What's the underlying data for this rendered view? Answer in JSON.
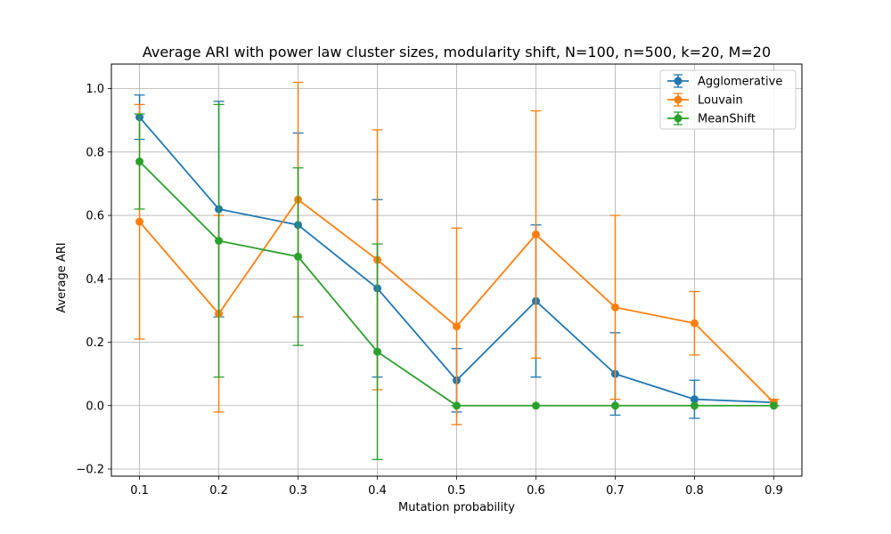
{
  "chart_data": {
    "type": "line",
    "title": "Average ARI with power law cluster sizes, modularity shift, N=100, n=500, k=20, M=20",
    "xlabel": "Mutation probability",
    "ylabel": "Average ARI",
    "x": [
      0.1,
      0.2,
      0.3,
      0.4,
      0.5,
      0.6,
      0.7,
      0.8,
      0.9
    ],
    "xticks": [
      "0.1",
      "0.2",
      "0.3",
      "0.4",
      "0.5",
      "0.6",
      "0.7",
      "0.8",
      "0.9"
    ],
    "yticks": [
      "−0.2",
      "0.0",
      "0.2",
      "0.4",
      "0.6",
      "0.8",
      "1.0"
    ],
    "ytick_values": [
      -0.2,
      0.0,
      0.2,
      0.4,
      0.6,
      0.8,
      1.0
    ],
    "xlim": [
      0.0645,
      0.9355
    ],
    "ylim": [
      -0.2225,
      1.0775
    ],
    "grid": true,
    "legend_position": "top-right",
    "error_bars": true,
    "series": [
      {
        "name": "Agglomerative",
        "color": "#1f77b4",
        "marker": "circle",
        "values": [
          0.91,
          0.62,
          0.57,
          0.37,
          0.08,
          0.33,
          0.1,
          0.02,
          0.01
        ],
        "lower": [
          0.84,
          0.28,
          0.28,
          0.09,
          -0.02,
          0.09,
          -0.03,
          -0.04,
          0.0
        ],
        "upper": [
          0.98,
          0.96,
          0.86,
          0.65,
          0.18,
          0.57,
          0.23,
          0.08,
          0.02
        ]
      },
      {
        "name": "Louvain",
        "color": "#ff7f0e",
        "marker": "circle",
        "values": [
          0.58,
          0.29,
          0.65,
          0.46,
          0.25,
          0.54,
          0.31,
          0.26,
          0.01
        ],
        "lower": [
          0.21,
          -0.02,
          0.28,
          0.05,
          -0.06,
          0.15,
          0.02,
          0.16,
          0.0
        ],
        "upper": [
          0.95,
          0.6,
          1.02,
          0.87,
          0.56,
          0.93,
          0.6,
          0.36,
          0.02
        ]
      },
      {
        "name": "MeanShift",
        "color": "#2ca02c",
        "marker": "circle",
        "values": [
          0.77,
          0.52,
          0.47,
          0.17,
          0.0,
          0.0,
          0.0,
          0.0,
          0.0
        ],
        "lower": [
          0.62,
          0.09,
          0.19,
          -0.17,
          0.0,
          0.0,
          0.0,
          0.0,
          0.0
        ],
        "upper": [
          0.92,
          0.95,
          0.75,
          0.51,
          0.0,
          0.0,
          0.0,
          0.0,
          0.0
        ]
      }
    ]
  }
}
